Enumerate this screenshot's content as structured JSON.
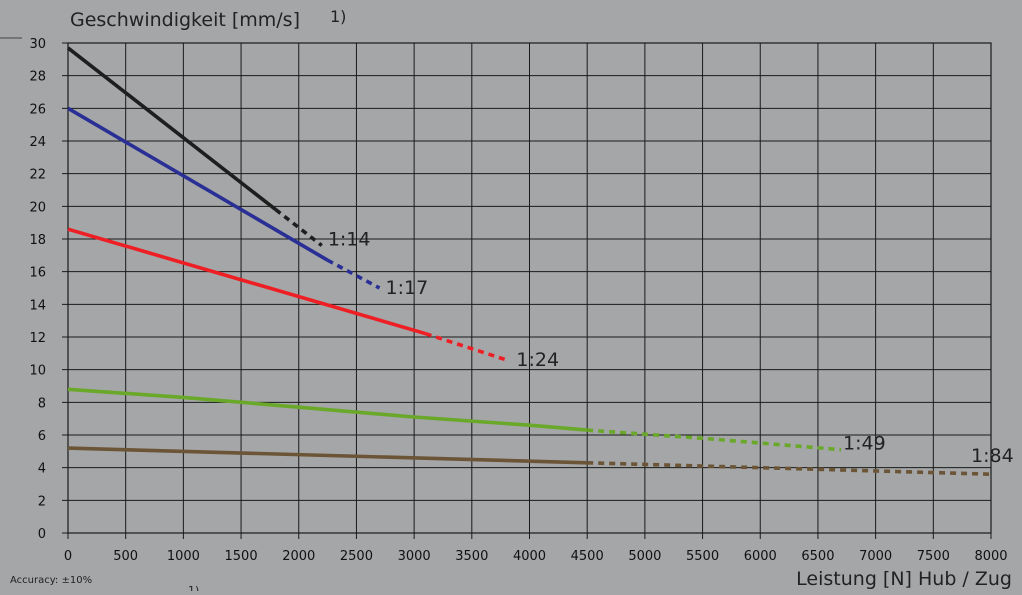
{
  "chart_data": {
    "type": "line",
    "title": "",
    "ylabel": "Geschwindigkeit [mm/s]",
    "ylabel_superscript": "1)",
    "xlabel": "Leistung [N] Hub / Zug",
    "xlim": [
      0,
      8000
    ],
    "ylim": [
      0,
      30
    ],
    "x_ticks": [
      0,
      500,
      1000,
      1500,
      2000,
      2500,
      3000,
      3500,
      4000,
      4500,
      5000,
      5500,
      6000,
      6500,
      7000,
      7500,
      8000
    ],
    "y_ticks": [
      0,
      2,
      4,
      6,
      8,
      10,
      12,
      14,
      16,
      18,
      20,
      22,
      24,
      26,
      28,
      30
    ],
    "grid": true,
    "legend": "none",
    "footnote": "Accuracy: ±10%",
    "footnote_superscript": "1)",
    "series": [
      {
        "name": "1:14",
        "color": "#1e1e1e",
        "solid": [
          [
            0,
            29.7
          ],
          [
            1800,
            19.8
          ]
        ],
        "dashed": [
          [
            1800,
            19.8
          ],
          [
            2200,
            17.6
          ]
        ]
      },
      {
        "name": "1:17",
        "color": "#2a2f95",
        "solid": [
          [
            0,
            26.0
          ],
          [
            2250,
            16.7
          ]
        ],
        "dashed": [
          [
            2250,
            16.7
          ],
          [
            2700,
            15.0
          ]
        ]
      },
      {
        "name": "1:24",
        "color": "#ee1f24",
        "solid": [
          [
            0,
            18.6
          ],
          [
            3100,
            12.2
          ]
        ],
        "dashed": [
          [
            3100,
            12.2
          ],
          [
            3800,
            10.6
          ]
        ]
      },
      {
        "name": "1:49",
        "color": "#6aa82a",
        "solid": [
          [
            0,
            8.8
          ],
          [
            1000,
            8.3
          ],
          [
            2000,
            7.7
          ],
          [
            3000,
            7.1
          ],
          [
            4000,
            6.6
          ],
          [
            4500,
            6.3
          ]
        ],
        "dashed": [
          [
            4500,
            6.3
          ],
          [
            5500,
            5.8
          ],
          [
            6700,
            5.1
          ]
        ]
      },
      {
        "name": "1:84",
        "color": "#6b5536",
        "solid": [
          [
            0,
            5.2
          ],
          [
            4500,
            4.3
          ]
        ],
        "dashed": [
          [
            4500,
            4.3
          ],
          [
            8000,
            3.6
          ]
        ]
      }
    ]
  }
}
